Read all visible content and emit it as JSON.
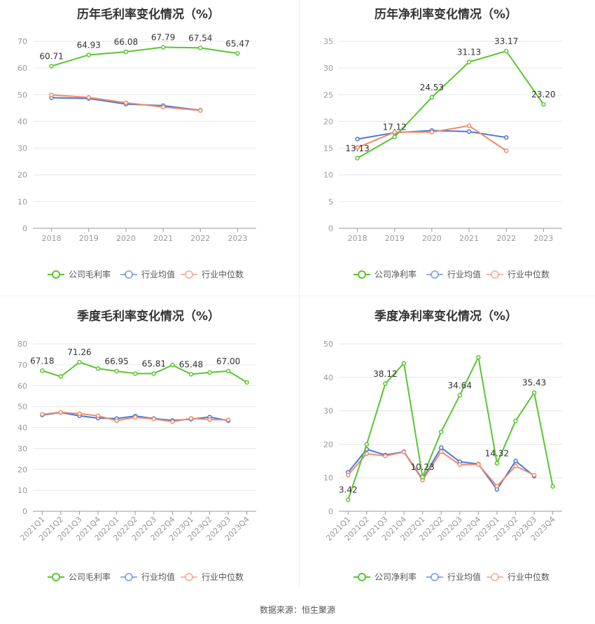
{
  "colors": {
    "company": "#5ac531",
    "avg": "#4a78d8",
    "median": "#f08b6b"
  },
  "source_text": "数据来源：恒生聚源",
  "chart_data": [
    {
      "type": "line",
      "title": "历年毛利率变化情况（%）",
      "categories": [
        "2018",
        "2019",
        "2020",
        "2021",
        "2022",
        "2023"
      ],
      "ylim": [
        0,
        70
      ],
      "yticks": [
        0,
        10,
        20,
        30,
        40,
        50,
        60,
        70
      ],
      "grid": true,
      "legend": "bottom",
      "series": [
        {
          "name": "公司毛利率",
          "role": "company",
          "values": [
            60.71,
            64.93,
            66.08,
            67.79,
            67.54,
            65.47
          ],
          "labels": [
            "60.71",
            "64.93",
            "66.08",
            "67.79",
            "67.54",
            "65.47"
          ]
        },
        {
          "name": "行业均值",
          "role": "avg",
          "values": [
            48.9,
            48.6,
            46.5,
            45.9,
            44.2,
            null
          ]
        },
        {
          "name": "行业中位数",
          "role": "median",
          "values": [
            49.9,
            49.0,
            47.0,
            45.4,
            44.1,
            null
          ]
        }
      ]
    },
    {
      "type": "line",
      "title": "历年净利率变化情况（%）",
      "categories": [
        "2018",
        "2019",
        "2020",
        "2021",
        "2022",
        "2023"
      ],
      "ylim": [
        0,
        35
      ],
      "yticks": [
        0,
        5,
        10,
        15,
        20,
        25,
        30,
        35
      ],
      "grid": true,
      "legend": "bottom",
      "series": [
        {
          "name": "公司净利率",
          "role": "company",
          "values": [
            13.13,
            17.12,
            24.53,
            31.13,
            33.17,
            23.2
          ],
          "labels": [
            "13.13",
            "17.12",
            "24.53",
            "31.13",
            "33.17",
            "23.20"
          ]
        },
        {
          "name": "行业均值",
          "role": "avg",
          "values": [
            16.7,
            17.9,
            18.3,
            18.1,
            17.0,
            null
          ]
        },
        {
          "name": "行业中位数",
          "role": "median",
          "values": [
            15.1,
            18.0,
            18.0,
            19.2,
            14.5,
            null
          ]
        }
      ]
    },
    {
      "type": "line",
      "title": "季度毛利率变化情况（%）",
      "categories": [
        "2021Q1",
        "2021Q2",
        "2021Q3",
        "2021Q4",
        "2022Q1",
        "2022Q2",
        "2022Q3",
        "2022Q4",
        "2023Q1",
        "2023Q2",
        "2023Q3",
        "2023Q4"
      ],
      "ylim": [
        0,
        80
      ],
      "yticks": [
        0,
        10,
        20,
        30,
        40,
        50,
        60,
        70,
        80
      ],
      "grid": true,
      "legend": "bottom",
      "series": [
        {
          "name": "公司毛利率",
          "role": "company",
          "values": [
            67.18,
            64.4,
            71.26,
            68.2,
            66.95,
            65.8,
            65.81,
            69.9,
            65.48,
            66.3,
            67.0,
            61.6
          ],
          "labels": [
            "67.18",
            "",
            "71.26",
            "",
            "66.95",
            "",
            "65.81",
            "",
            "65.48",
            "",
            "67.00",
            ""
          ]
        },
        {
          "name": "行业均值",
          "role": "avg",
          "values": [
            46.0,
            47.2,
            45.6,
            44.5,
            44.3,
            45.5,
            44.3,
            43.4,
            44.0,
            45.0,
            43.3,
            null
          ]
        },
        {
          "name": "行业中位数",
          "role": "median",
          "values": [
            46.3,
            47.3,
            46.6,
            45.6,
            43.3,
            44.9,
            44.1,
            42.8,
            44.4,
            43.8,
            43.7,
            null
          ]
        }
      ]
    },
    {
      "type": "line",
      "title": "季度净利率变化情况（%）",
      "categories": [
        "2021Q1",
        "2021Q2",
        "2021Q3",
        "2021Q4",
        "2022Q1",
        "2022Q2",
        "2022Q3",
        "2022Q4",
        "2023Q1",
        "2023Q2",
        "2023Q3",
        "2023Q4"
      ],
      "ylim": [
        0,
        50
      ],
      "yticks": [
        0,
        10,
        20,
        30,
        40,
        50
      ],
      "grid": true,
      "legend": "bottom",
      "series": [
        {
          "name": "公司净利率",
          "role": "company",
          "values": [
            3.42,
            20.0,
            38.12,
            44.2,
            10.23,
            23.7,
            34.64,
            46.0,
            14.32,
            27.0,
            35.43,
            7.4
          ],
          "labels": [
            "3.42",
            "",
            "38.12",
            "",
            "10.23",
            "",
            "34.64",
            "",
            "14.32",
            "",
            "35.43",
            ""
          ]
        },
        {
          "name": "行业均值",
          "role": "avg",
          "values": [
            11.6,
            18.5,
            16.8,
            17.8,
            9.6,
            19.0,
            14.8,
            14.1,
            6.5,
            15.0,
            10.5,
            null
          ]
        },
        {
          "name": "行业中位数",
          "role": "median",
          "values": [
            10.8,
            17.2,
            16.5,
            17.7,
            9.3,
            17.8,
            13.9,
            14.0,
            7.5,
            13.5,
            10.8,
            null
          ]
        }
      ]
    }
  ]
}
